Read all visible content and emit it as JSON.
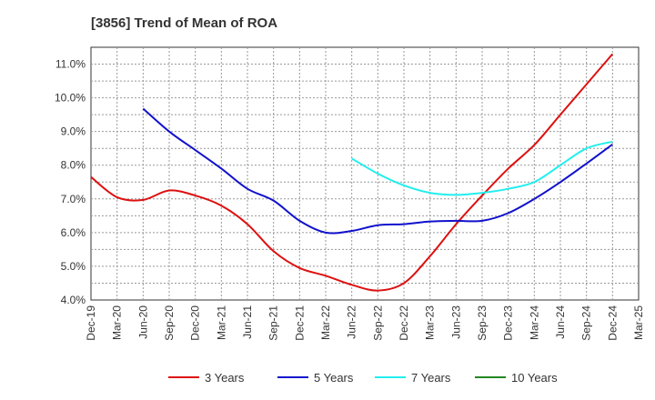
{
  "chart_data": {
    "type": "line",
    "title": "[3856]  Trend of Mean of ROA",
    "xlabel": "",
    "ylabel": "",
    "x_ticks": [
      "Dec-19",
      "Mar-20",
      "Jun-20",
      "Sep-20",
      "Dec-20",
      "Mar-21",
      "Jun-21",
      "Sep-21",
      "Dec-21",
      "Mar-22",
      "Jun-22",
      "Sep-22",
      "Dec-22",
      "Mar-23",
      "Jun-23",
      "Sep-23",
      "Dec-23",
      "Mar-24",
      "Jun-24",
      "Sep-24",
      "Dec-24",
      "Mar-25"
    ],
    "y_ticks": [
      "4.0%",
      "5.0%",
      "6.0%",
      "7.0%",
      "8.0%",
      "9.0%",
      "10.0%",
      "11.0%"
    ],
    "ylim": [
      4.0,
      11.5
    ],
    "grid": true,
    "legend_position": "bottom",
    "series": [
      {
        "name": "3 Years",
        "color": "#dd1111",
        "start_index": 0,
        "values": [
          7.65,
          7.05,
          6.97,
          7.25,
          7.1,
          6.8,
          6.25,
          5.45,
          4.95,
          4.72,
          4.45,
          4.28,
          4.5,
          5.3,
          6.25,
          7.1,
          7.9,
          8.6,
          9.5,
          10.4,
          11.3
        ]
      },
      {
        "name": "5 Years",
        "color": "#1111cc",
        "start_index": 2,
        "values": [
          9.68,
          9.0,
          8.45,
          7.9,
          7.3,
          6.95,
          6.35,
          6.0,
          6.05,
          6.22,
          6.25,
          6.33,
          6.35,
          6.35,
          6.58,
          7.0,
          7.5,
          8.05,
          8.62
        ]
      },
      {
        "name": "7 Years",
        "color": "#22eeee",
        "start_index": 10,
        "values": [
          8.2,
          7.75,
          7.4,
          7.18,
          7.12,
          7.18,
          7.3,
          7.5,
          8.0,
          8.5,
          8.7
        ]
      },
      {
        "name": "10 Years",
        "color": "#228822",
        "start_index": 0,
        "values": []
      }
    ]
  }
}
